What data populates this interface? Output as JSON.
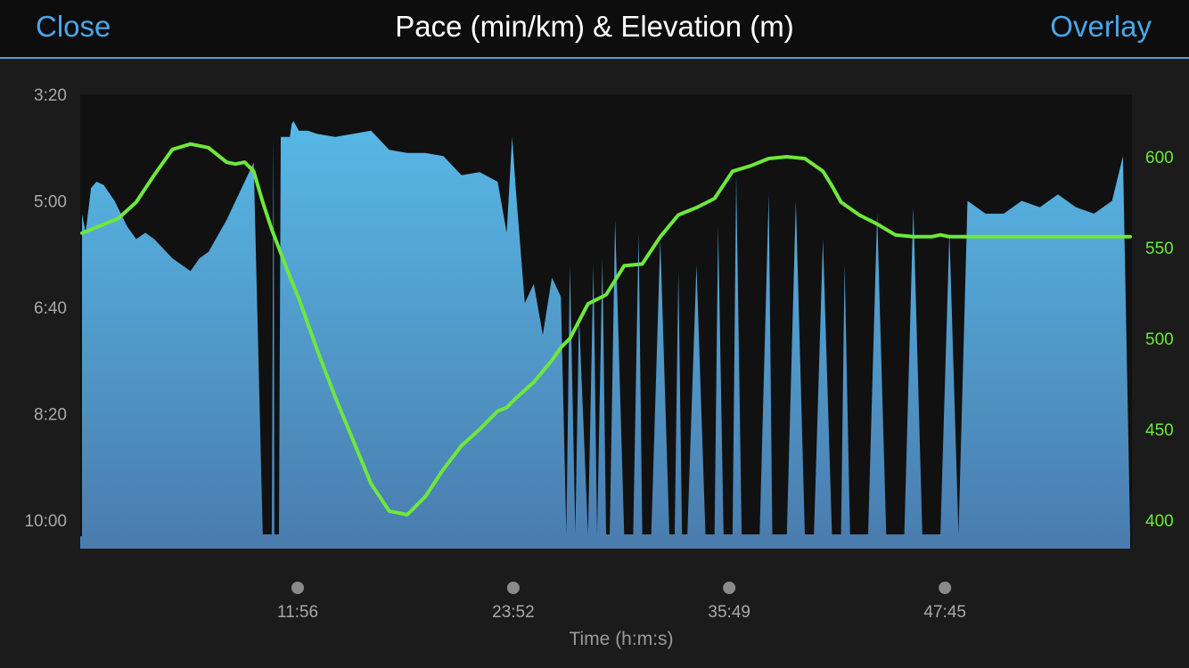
{
  "header": {
    "close_label": "Close",
    "title": "Pace (min/km) & Elevation (m)",
    "overlay_label": "Overlay"
  },
  "colors": {
    "pace_fill_top": "#57b8e6",
    "pace_fill_bottom": "#4a7cae",
    "elevation_line": "#6ee83c",
    "accent": "#4aa6e8"
  },
  "chart_data": {
    "type": "area",
    "title": "Pace (min/km) & Elevation (m)",
    "xlabel": "Time (h:m:s)",
    "x_ticks": [
      "11:56",
      "23:52",
      "35:49",
      "47:45"
    ],
    "x_tick_minutes": [
      11.933,
      23.867,
      35.817,
      47.75
    ],
    "xlim_minutes": [
      0,
      58
    ],
    "y_left": {
      "label": "Pace (min/km)",
      "inverted": true,
      "ticks": [
        "3:20",
        "5:00",
        "6:40",
        "8:20",
        "10:00"
      ],
      "tick_minutes": [
        3.333,
        5.0,
        6.667,
        8.333,
        10.0
      ],
      "ylim": [
        3.333,
        10.0
      ]
    },
    "y_right": {
      "label": "Elevation (m)",
      "ticks": [
        "400",
        "450",
        "500",
        "550",
        "600"
      ],
      "tick_values": [
        400,
        450,
        500,
        550,
        600
      ],
      "ylim": [
        400,
        600
      ]
    },
    "series": [
      {
        "type": "area",
        "axis": "left",
        "x": [
          0,
          0.2,
          0.5,
          0.8,
          1.2,
          1.8,
          2.5,
          3.0,
          3.5,
          4.0,
          5.0,
          6.0,
          6.5,
          7.0,
          8.0,
          9.0,
          9.5,
          10.0,
          10.5,
          10.6,
          10.65,
          10.9,
          11.0,
          11.5,
          11.6,
          11.7,
          12.0,
          12.5,
          13.0,
          14.0,
          15.0,
          16.0,
          17.0,
          18.0,
          19.0,
          20.0,
          21.0,
          22.0,
          23.0,
          23.5,
          23.8,
          23.9,
          24.0,
          24.5,
          25.0,
          25.5,
          26.0,
          26.5,
          26.8,
          27.0,
          27.3,
          27.5,
          28.0,
          28.3,
          28.5,
          28.8,
          29.0,
          29.2,
          29.5,
          30.0,
          30.5,
          30.8,
          31.0,
          31.5,
          32.0,
          32.5,
          32.8,
          33.0,
          33.2,
          33.5,
          34.0,
          34.5,
          35.0,
          35.2,
          35.5,
          36.0,
          36.2,
          36.5,
          37.0,
          37.5,
          38.0,
          38.2,
          38.5,
          39.0,
          39.5,
          40.0,
          40.5,
          41.0,
          41.5,
          42.0,
          42.2,
          42.5,
          43.0,
          43.5,
          44.0,
          44.5,
          45.0,
          45.5,
          46.0,
          46.5,
          47.0,
          47.5,
          48.0,
          48.5,
          49.0,
          50.0,
          51.0,
          52.0,
          53.0,
          54.0,
          55.0,
          56.0,
          57.0,
          57.6,
          58.0
        ],
        "values": [
          5.2,
          5.5,
          4.8,
          4.7,
          4.75,
          5.0,
          5.4,
          5.6,
          5.5,
          5.6,
          5.9,
          6.1,
          5.9,
          5.8,
          5.3,
          4.7,
          4.4,
          10.0,
          10.0,
          4.0,
          10.0,
          10.0,
          4.0,
          4.0,
          3.8,
          3.75,
          3.9,
          3.9,
          3.95,
          4.0,
          3.95,
          3.9,
          4.2,
          4.25,
          4.25,
          4.3,
          4.6,
          4.55,
          4.7,
          5.5,
          4.0,
          4.4,
          4.8,
          6.6,
          6.3,
          7.1,
          6.2,
          6.5,
          10.0,
          6.0,
          10.0,
          6.8,
          10.0,
          6.0,
          10.0,
          5.9,
          10.0,
          10.0,
          5.3,
          10.0,
          10.0,
          5.5,
          10.0,
          10.0,
          5.6,
          10.0,
          10.0,
          6.1,
          10.0,
          10.0,
          6.0,
          10.0,
          10.0,
          5.4,
          10.0,
          10.0,
          4.6,
          10.0,
          10.0,
          10.0,
          4.9,
          10.0,
          10.0,
          10.0,
          5.0,
          10.0,
          10.0,
          5.6,
          10.0,
          10.0,
          6.0,
          10.0,
          10.0,
          10.0,
          5.2,
          10.0,
          10.0,
          10.0,
          5.1,
          10.0,
          10.0,
          10.0,
          5.5,
          10.0,
          5.0,
          5.2,
          5.2,
          5.0,
          5.1,
          4.9,
          5.1,
          5.2,
          5.0,
          4.3,
          10.0
        ]
      },
      {
        "type": "line",
        "axis": "right",
        "x": [
          0,
          1,
          2,
          3,
          4,
          5,
          6,
          7,
          8,
          8.5,
          9,
          9.5,
          10,
          10.5,
          11,
          11.5,
          12,
          13,
          14,
          15,
          16,
          17,
          18,
          19,
          20,
          21,
          22,
          23,
          23.5,
          24,
          25,
          26,
          26.5,
          27,
          28,
          29,
          30,
          31,
          32,
          33,
          34,
          35,
          36,
          37,
          37.5,
          38,
          39,
          40,
          41,
          41.5,
          42,
          43,
          44,
          45,
          46,
          47,
          47.5,
          48,
          48.5,
          49,
          49.5,
          50,
          51,
          52,
          53,
          54,
          55,
          56,
          57,
          58
        ],
        "values": [
          558,
          562,
          566,
          575,
          590,
          604,
          607,
          605,
          597,
          596,
          597,
          592,
          575,
          560,
          547,
          534,
          522,
          494,
          468,
          444,
          420,
          405,
          403,
          413,
          428,
          441,
          450,
          460,
          462,
          467,
          476,
          488,
          495,
          500,
          519,
          524,
          540,
          541,
          556,
          568,
          572,
          577,
          592,
          595,
          597,
          599,
          600,
          599,
          592,
          584,
          575,
          568,
          563,
          557,
          556,
          556,
          557,
          556,
          556,
          556,
          556,
          556,
          556,
          556,
          556,
          556,
          556,
          556,
          556,
          556
        ]
      }
    ],
    "grid": false
  }
}
